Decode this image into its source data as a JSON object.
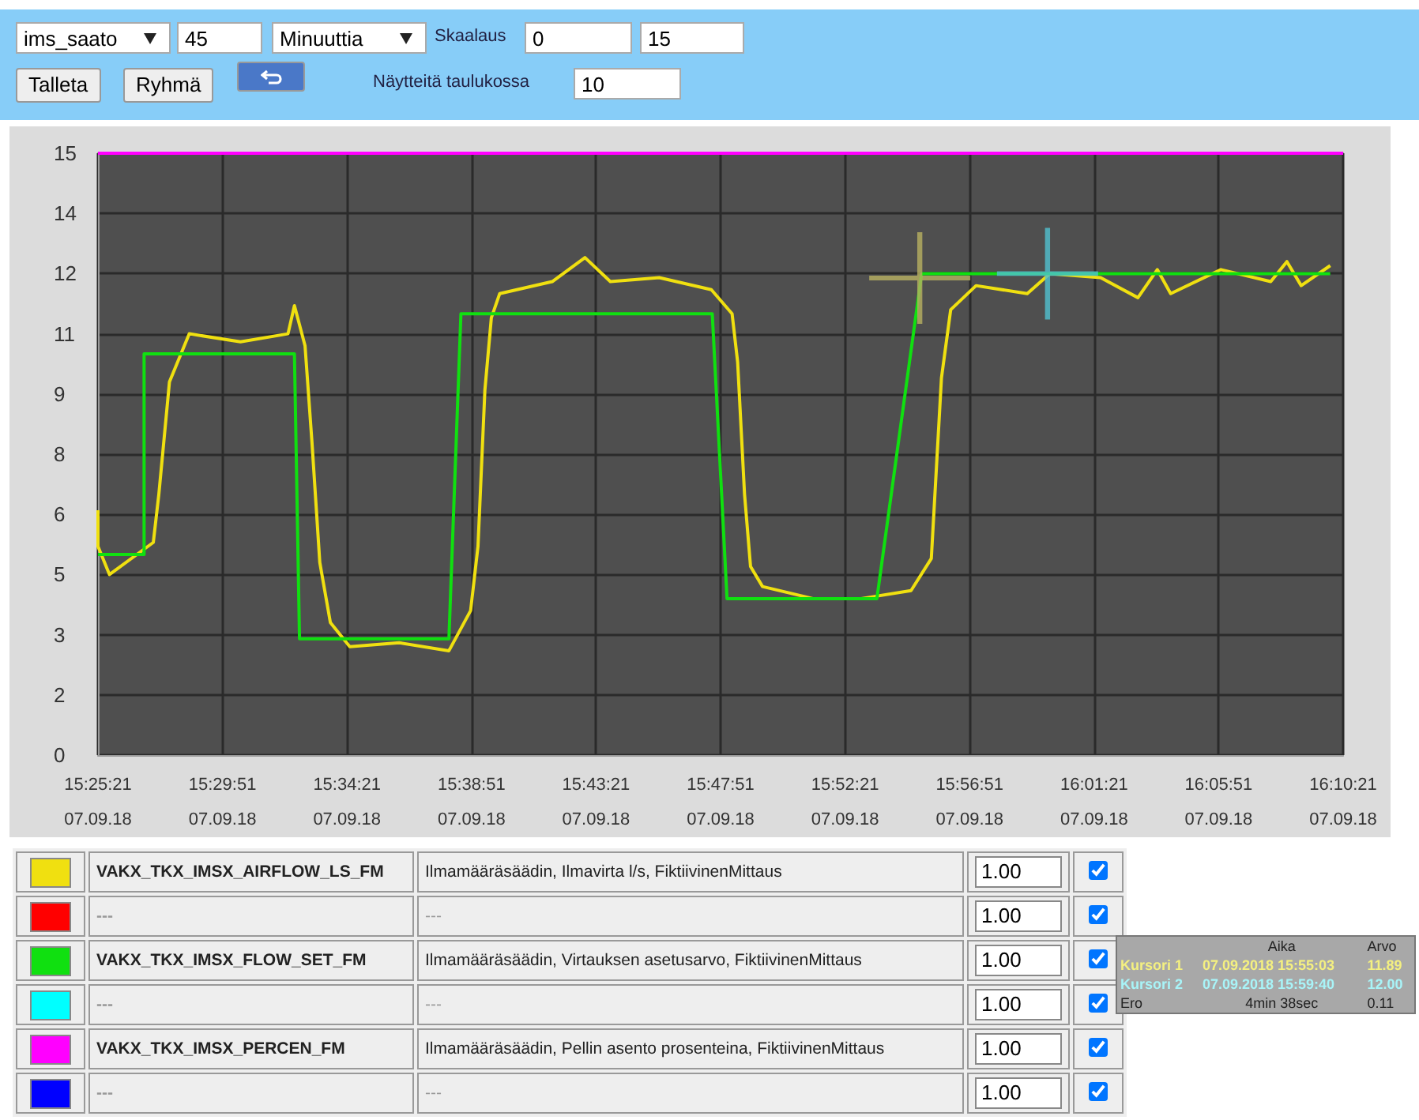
{
  "chart_data": {
    "type": "line",
    "xlim": [
      "2018-09-07T15:25:21",
      "2018-09-07T16:10:21"
    ],
    "xticks": [
      {
        "value": "2018-09-07T15:25:21",
        "label": "15:25:21\n07.09.18"
      },
      {
        "value": "2018-09-07T15:29:51",
        "label": "15:29:51\n07.09.18"
      },
      {
        "value": "2018-09-07T15:34:21",
        "label": "15:34:21\n07.09.18"
      },
      {
        "value": "2018-09-07T15:38:51",
        "label": "15:38:51\n07.09.18"
      },
      {
        "value": "2018-09-07T15:43:21",
        "label": "15:43:21\n07.09.18"
      },
      {
        "value": "2018-09-07T15:47:51",
        "label": "15:47:51\n07.09.18"
      },
      {
        "value": "2018-09-07T15:52:21",
        "label": "15:52:21\n07.09.18"
      },
      {
        "value": "2018-09-07T15:56:51",
        "label": "15:56:51\n07.09.18"
      },
      {
        "value": "2018-09-07T16:01:21",
        "label": "16:01:21\n07.09.18"
      },
      {
        "value": "2018-09-07T16:05:51",
        "label": "16:05:51\n07.09.18"
      },
      {
        "value": "2018-09-07T16:10:21",
        "label": "16:10:21\n07.09.18"
      }
    ],
    "ylim": [
      0,
      15
    ],
    "yticks": [
      0,
      {
        "value": 1.5,
        "label": "2"
      },
      3,
      {
        "value": 4.5,
        "label": "5"
      },
      6,
      {
        "value": 7.5,
        "label": "8"
      },
      9,
      {
        "value": 10.5,
        "label": "11"
      },
      12,
      {
        "value": 13.5,
        "label": "14"
      },
      15
    ],
    "grid": true,
    "legend": "bottom",
    "marker": "none",
    "series": [
      {
        "name": "VAKX_TKX_IMSX_AIRFLOW_LS_FM",
        "color": "#f0e010",
        "x": [
          "2018-09-07T15:25:21",
          "2018-09-07T15:25:21",
          "2018-09-07T15:25:46",
          "2018-09-07T15:27:21",
          "2018-09-07T15:27:33",
          "2018-09-07T15:27:56",
          "2018-09-07T15:28:39",
          "2018-09-07T15:30:30",
          "2018-09-07T15:32:13",
          "2018-09-07T15:32:27",
          "2018-09-07T15:32:50",
          "2018-09-07T15:33:05",
          "2018-09-07T15:33:22",
          "2018-09-07T15:33:45",
          "2018-09-07T15:34:27",
          "2018-09-07T15:36:14",
          "2018-09-07T15:38:02",
          "2018-09-07T15:38:49",
          "2018-09-07T15:39:05",
          "2018-09-07T15:39:20",
          "2018-09-07T15:39:34",
          "2018-09-07T15:39:52",
          "2018-09-07T15:41:46",
          "2018-09-07T15:42:57",
          "2018-09-07T15:43:52",
          "2018-09-07T15:45:38",
          "2018-09-07T15:47:31",
          "2018-09-07T15:48:16",
          "2018-09-07T15:48:28",
          "2018-09-07T15:48:43",
          "2018-09-07T15:48:56",
          "2018-09-07T15:49:22",
          "2018-09-07T15:51:11",
          "2018-09-07T15:52:56",
          "2018-09-07T15:54:44",
          "2018-09-07T15:55:28",
          "2018-09-07T15:55:50",
          "2018-09-07T15:56:10",
          "2018-09-07T15:57:05",
          "2018-09-07T15:58:56",
          "2018-09-07T15:59:45",
          "2018-09-07T16:01:35",
          "2018-09-07T16:02:56",
          "2018-09-07T16:03:38",
          "2018-09-07T16:04:07",
          "2018-09-07T16:05:56",
          "2018-09-07T16:07:44",
          "2018-09-07T16:08:19",
          "2018-09-07T16:08:50",
          "2018-09-07T16:09:53"
        ],
        "values": [
          6.1,
          5.2,
          4.5,
          5.3,
          6.5,
          9.3,
          10.5,
          10.3,
          10.5,
          11.2,
          10.2,
          7.8,
          4.8,
          3.3,
          2.7,
          2.8,
          2.6,
          3.6,
          5.2,
          9.1,
          10.9,
          11.5,
          11.8,
          12.4,
          11.8,
          11.9,
          11.6,
          11.0,
          9.8,
          6.5,
          4.7,
          4.2,
          3.9,
          3.9,
          4.1,
          4.9,
          9.4,
          11.1,
          11.7,
          11.5,
          12.0,
          11.9,
          11.4,
          12.1,
          11.5,
          12.1,
          11.8,
          12.3,
          11.7,
          12.2
        ]
      },
      {
        "color": "#ff0000"
      },
      {
        "name": "VAKX_TKX_IMSX_FLOW_SET_FM",
        "color": "#10e010",
        "x": [
          "2018-09-07T15:25:21",
          "2018-09-07T15:27:01",
          "2018-09-07T15:27:01",
          "2018-09-07T15:32:27",
          "2018-09-07T15:32:38",
          "2018-09-07T15:38:02",
          "2018-09-07T15:38:28",
          "2018-09-07T15:47:33",
          "2018-09-07T15:48:05",
          "2018-09-07T15:53:30",
          "2018-09-07T15:55:07",
          "2018-09-07T16:09:53"
        ],
        "values": [
          5.0,
          5.0,
          10.0,
          10.0,
          2.9,
          2.9,
          11.0,
          11.0,
          3.9,
          3.9,
          12.0,
          12.0
        ]
      },
      {
        "color": "#00ffff"
      },
      {
        "name": "VAKX_TKX_IMSX_PERCEN_FM",
        "color": "#ff00ff",
        "x": [
          "2018-09-07T15:25:21",
          "2018-09-07T16:10:21"
        ],
        "values": [
          15,
          15
        ]
      },
      {
        "color": "#0000ff"
      },
      {
        "type": "scatter",
        "marker": "cross",
        "color": "#b8b060",
        "x": [
          "2018-09-07T15:55:03"
        ],
        "values": [
          11.89
        ]
      },
      {
        "type": "scatter",
        "marker": "cross",
        "color": "#50c0d0",
        "x": [
          "2018-09-07T15:59:40"
        ],
        "values": [
          12.0
        ]
      }
    ],
    "annotations": [
      "ims_saato",
      "45",
      "Minuuttia",
      "Skaalaus",
      "0",
      "15",
      "Talleta",
      "Ryhmä",
      "Näytteitä taulukossa",
      "10",
      "Ilmamääräsäädin, Ilmavirta l/s, FiktiivinenMittaus",
      "Ilmamääräsäädin, Virtauksen asetusarvo, FiktiivinenMittaus",
      "Ilmamääräsäädin, Pellin asento prosenteina, FiktiivinenMittaus",
      "---",
      "1.00",
      "Aika",
      "Arvo",
      "Kursori 1",
      "07.09.2018 15:55:03",
      "11.89",
      "Kursori 2",
      "07.09.2018 15:59:40",
      "12.00",
      "Ero",
      "4min 38sec",
      "0.11"
    ]
  }
}
